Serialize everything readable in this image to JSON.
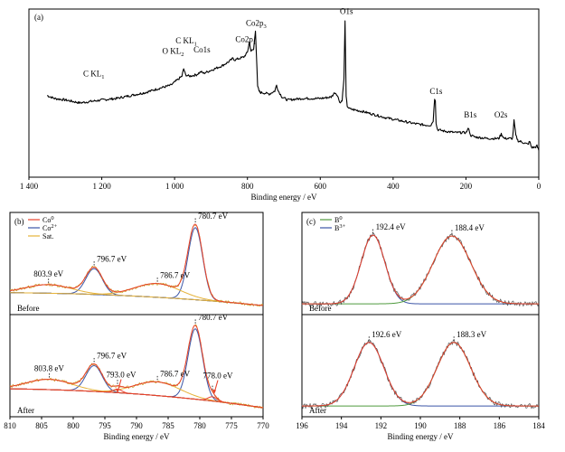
{
  "chart_data": [
    {
      "panel": "(a)",
      "type": "line",
      "xlabel": "Binding energy / eV",
      "ylabel": "",
      "xlim": [
        1400,
        0
      ],
      "ylim": [
        0,
        100
      ],
      "x_ticks": [
        "1 400",
        "1 200",
        "1 000",
        "800",
        "600",
        "400",
        "200",
        "0"
      ],
      "x_tick_values": [
        1400,
        1200,
        1000,
        800,
        600,
        400,
        200,
        0
      ],
      "grid": false,
      "legend": "none",
      "series": [
        {
          "color": "#000000",
          "x": [
            1350,
            1330,
            1300,
            1260,
            1230,
            1200,
            1160,
            1120,
            1080,
            1040,
            1010,
            1000,
            990,
            980,
            975,
            970,
            960,
            940,
            928,
            920,
            900,
            870,
            850,
            840,
            835,
            810,
            800,
            795,
            790,
            783,
            780,
            778,
            772,
            768,
            765,
            760,
            740,
            725,
            720,
            715,
            705,
            690,
            650,
            600,
            570,
            560,
            555,
            545,
            540,
            535,
            532,
            529,
            526,
            520,
            500,
            480,
            450,
            420,
            400,
            380,
            340,
            310,
            296,
            290,
            286,
            284,
            282,
            278,
            260,
            230,
            200,
            192,
            188,
            185,
            175,
            140,
            110,
            103,
            100,
            95,
            80,
            72,
            68,
            63,
            58,
            55,
            50,
            40,
            30,
            25,
            20,
            10,
            5,
            0
          ],
          "y": [
            49,
            47,
            46,
            44,
            45,
            46,
            47,
            49,
            51,
            54,
            56,
            58,
            60,
            62,
            67,
            63,
            62,
            63,
            65,
            64,
            66,
            69,
            72,
            74,
            73,
            75,
            78,
            85,
            79,
            80,
            88,
            93,
            55,
            52,
            51,
            51,
            50,
            52,
            56,
            52,
            48,
            46,
            47,
            47,
            48,
            51,
            50,
            44,
            46,
            60,
            100,
            48,
            42,
            40,
            39,
            38,
            36,
            34,
            33,
            32,
            30,
            29,
            29,
            32,
            47,
            46,
            30,
            26,
            25,
            24,
            24,
            27,
            22,
            22,
            21,
            20,
            20,
            23,
            22,
            20,
            20,
            20,
            32,
            22,
            19,
            18,
            18,
            17,
            16,
            18,
            14,
            14,
            15,
            12
          ]
        }
      ],
      "annotations": [
        {
          "text": "C KL",
          "sub": "1",
          "x": 1222,
          "y": 62
        },
        {
          "text": "O KL",
          "sub": "2",
          "x": 1004,
          "y": 77
        },
        {
          "text": "C KL",
          "sub": "1",
          "x": 968,
          "y": 84
        },
        {
          "text": "Co1s",
          "x": 925,
          "y": 78
        },
        {
          "text": "Co2p",
          "sub": "1",
          "x": 805,
          "y": 85
        },
        {
          "text": "Co2p",
          "sub": "3",
          "x": 776,
          "y": 96
        },
        {
          "text": "O1s",
          "x": 528,
          "y": 104
        },
        {
          "text": "C1s",
          "x": 282,
          "y": 50
        },
        {
          "text": "B1s",
          "x": 188,
          "y": 34
        },
        {
          "text": "O2s",
          "x": 104,
          "y": 34
        }
      ]
    },
    {
      "panel": "(b)",
      "type": "line",
      "xlabel": "Binding energy / eV",
      "ylabel": "",
      "xlim": [
        810,
        770
      ],
      "x_ticks": [
        "810",
        "805",
        "800",
        "795",
        "790",
        "785",
        "780",
        "775",
        "770"
      ],
      "x_tick_values": [
        810,
        805,
        800,
        795,
        790,
        785,
        780,
        775,
        770
      ],
      "grid": false,
      "legend": "top-left",
      "legend_entries": [
        {
          "label": "Co",
          "sup": "0",
          "color": "#e8412c"
        },
        {
          "label": "Co",
          "sup": "2+",
          "color": "#3b55a6"
        },
        {
          "label": "Sat.",
          "color": "#e6b33a"
        }
      ],
      "subplots": [
        {
          "label": "Before",
          "peaks": [
            {
              "center": 780.7,
              "height": 0.84,
              "width": 1.15,
              "color": "#3b55a6",
              "label": "780.7 eV"
            },
            {
              "center": 796.7,
              "height": 0.3,
              "width": 1.3,
              "color": "#3b55a6",
              "label": "796.7 eV"
            },
            {
              "center": 786.7,
              "height": 0.16,
              "width": 3.6,
              "color": "#e6b33a",
              "label": "786.7 eV"
            },
            {
              "center": 803.9,
              "height": 0.1,
              "width": 3.6,
              "color": "#e6b33a",
              "label": "803.9 eV"
            }
          ],
          "background": {
            "left": 0.15,
            "right": 0.0
          }
        },
        {
          "label": "After",
          "peaks": [
            {
              "center": 780.7,
              "height": 0.82,
              "width": 1.15,
              "color": "#3b55a6",
              "label": "780.7 eV"
            },
            {
              "center": 796.7,
              "height": 0.3,
              "width": 1.3,
              "color": "#3b55a6",
              "label": "796.7 eV"
            },
            {
              "center": 786.7,
              "height": 0.16,
              "width": 3.6,
              "color": "#e6b33a",
              "label": "786.7 eV"
            },
            {
              "center": 803.8,
              "height": 0.12,
              "width": 3.6,
              "color": "#e6b33a",
              "label": "803.8 eV"
            },
            {
              "center": 778.0,
              "height": 0.05,
              "width": 0.7,
              "color": "#e8412c",
              "label": "778.0 eV"
            },
            {
              "center": 793.0,
              "height": 0.04,
              "width": 0.7,
              "color": "#e8412c",
              "label": "793.0 eV"
            }
          ],
          "background": {
            "left": 0.22,
            "right": 0.0
          },
          "arrows": [
            793.0,
            778.0
          ]
        }
      ]
    },
    {
      "panel": "(c)",
      "type": "line",
      "xlabel": "Binding energy / eV",
      "ylabel": "",
      "xlim": [
        196,
        184
      ],
      "x_ticks": [
        "196",
        "194",
        "192",
        "190",
        "188",
        "186",
        "184"
      ],
      "x_tick_values": [
        196,
        194,
        192,
        190,
        188,
        186,
        184
      ],
      "grid": false,
      "legend": "top-left",
      "legend_entries": [
        {
          "label": "B",
          "sup": "0",
          "color": "#4f9a3e"
        },
        {
          "label": "B",
          "sup": "3+",
          "color": "#3b55a6"
        }
      ],
      "subplots": [
        {
          "label": "Before",
          "peaks": [
            {
              "center": 192.4,
              "height": 0.8,
              "width": 0.6,
              "color": "#3b55a6",
              "label": "192.4 eV"
            },
            {
              "center": 188.4,
              "height": 0.79,
              "width": 0.95,
              "color": "#4f9a3e",
              "label": "188.4 eV"
            }
          ]
        },
        {
          "label": "After",
          "peaks": [
            {
              "center": 192.6,
              "height": 0.74,
              "width": 0.75,
              "color": "#3b55a6",
              "label": "192.6 eV"
            },
            {
              "center": 188.3,
              "height": 0.74,
              "width": 0.85,
              "color": "#4f9a3e",
              "label": "188.3 eV"
            }
          ]
        }
      ]
    }
  ]
}
